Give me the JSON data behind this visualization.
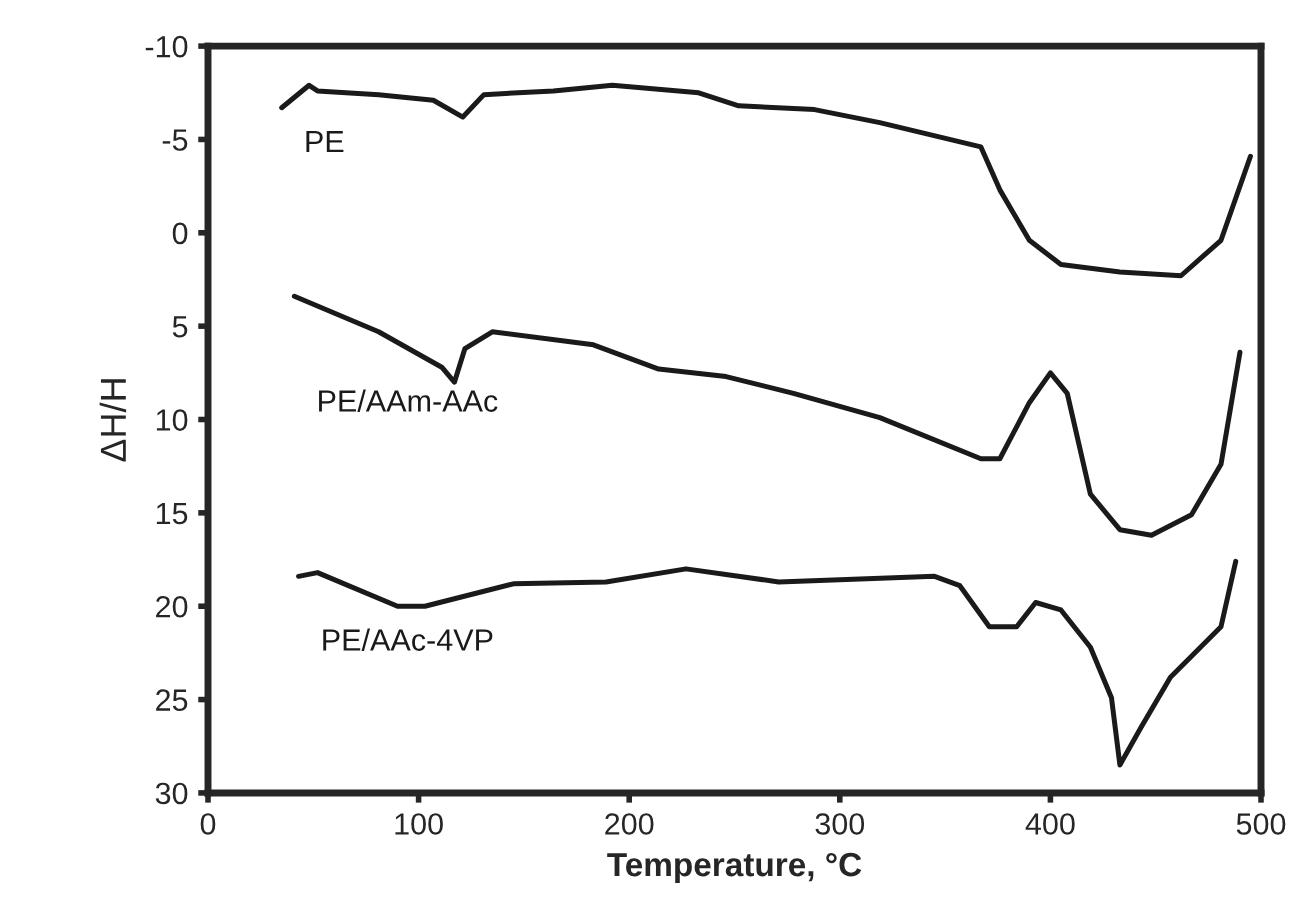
{
  "chart_data": {
    "type": "line",
    "xlabel": "Temperature, °C",
    "ylabel": "ΔH/H",
    "xlim": [
      0,
      500
    ],
    "ylim": [
      30,
      -10
    ],
    "xticks": [
      0,
      100,
      200,
      300,
      400,
      500
    ],
    "yticks": [
      {
        "value": -10,
        "label": "-10"
      },
      {
        "value": -5,
        "label": "-5"
      },
      0,
      5,
      10,
      15,
      20,
      25,
      30
    ],
    "grid": false,
    "legend": false,
    "series": [
      {
        "name": "PE",
        "color": "#1a1a1a",
        "x": [
          35,
          48,
          52,
          81,
          107,
          121,
          131,
          164,
          192,
          233,
          252,
          288,
          319,
          367,
          376,
          390,
          405,
          433,
          462,
          481,
          495
        ],
        "values": [
          -6.7,
          -7.9,
          -7.6,
          -7.4,
          -7.1,
          -6.2,
          -7.4,
          -7.6,
          -7.9,
          -7.5,
          -6.8,
          -6.6,
          -5.9,
          -4.6,
          -2.3,
          0.4,
          1.7,
          2.1,
          2.3,
          0.4,
          -4.1
        ]
      },
      {
        "name": "PE/AAm-AAc",
        "color": "#1a1a1a",
        "x": [
          41,
          81,
          111,
          117,
          122,
          135,
          183,
          214,
          246,
          278,
          319,
          367,
          376,
          390,
          400,
          408,
          419,
          433,
          448,
          467,
          481,
          490
        ],
        "values": [
          3.4,
          5.3,
          7.2,
          8.0,
          6.2,
          5.3,
          6.0,
          7.3,
          7.7,
          8.6,
          9.9,
          12.1,
          12.1,
          9.1,
          7.5,
          8.6,
          14.0,
          15.9,
          16.2,
          15.1,
          12.4,
          6.4
        ]
      },
      {
        "name": "PE/AAc-4VP",
        "color": "#1a1a1a",
        "x": [
          43,
          52,
          90,
          103,
          145,
          189,
          227,
          271,
          345,
          357,
          371,
          384,
          393,
          405,
          419,
          429,
          433,
          443,
          457,
          481,
          488
        ],
        "values": [
          18.4,
          18.2,
          20.0,
          20.0,
          18.8,
          18.7,
          18.0,
          18.7,
          18.4,
          18.9,
          21.1,
          21.1,
          19.8,
          20.2,
          22.2,
          24.9,
          28.5,
          26.5,
          23.8,
          21.1,
          17.6
        ]
      }
    ]
  }
}
